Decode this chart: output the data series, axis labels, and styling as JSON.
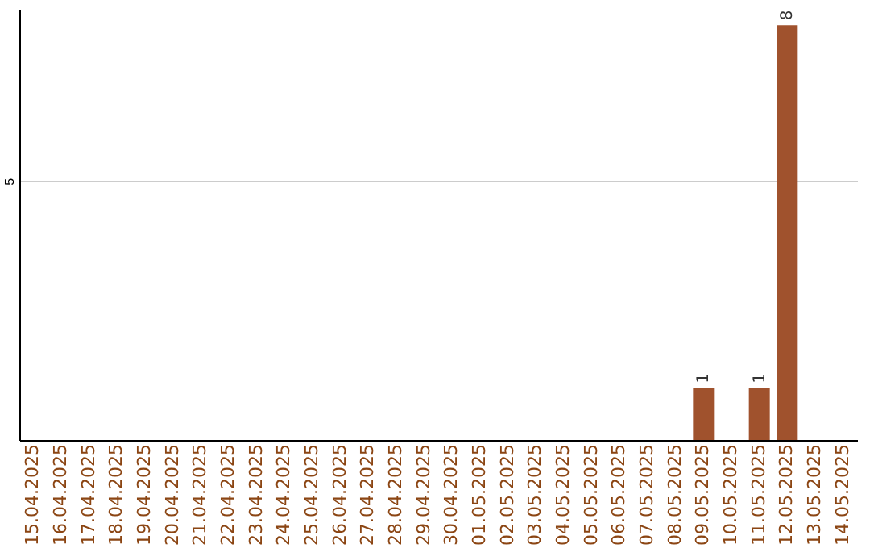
{
  "chart_data": {
    "type": "bar",
    "categories": [
      "15.04.2025",
      "16.04.2025",
      "17.04.2025",
      "18.04.2025",
      "19.04.2025",
      "20.04.2025",
      "21.04.2025",
      "22.04.2025",
      "23.04.2025",
      "24.04.2025",
      "25.04.2025",
      "26.04.2025",
      "27.04.2025",
      "28.04.2025",
      "29.04.2025",
      "30.04.2025",
      "01.05.2025",
      "02.05.2025",
      "03.05.2025",
      "04.05.2025",
      "05.05.2025",
      "06.05.2025",
      "07.05.2025",
      "08.05.2025",
      "09.05.2025",
      "10.05.2025",
      "11.05.2025",
      "12.05.2025",
      "13.05.2025",
      "14.05.2025"
    ],
    "values": [
      null,
      null,
      null,
      null,
      null,
      null,
      null,
      null,
      null,
      null,
      null,
      null,
      null,
      null,
      null,
      null,
      null,
      null,
      null,
      null,
      null,
      null,
      null,
      null,
      1,
      null,
      1,
      8,
      null,
      null
    ],
    "color": "#a0522d",
    "ylim": [
      0,
      8.3
    ],
    "yticks": [
      5
    ],
    "grid": "y",
    "data_labels": true
  }
}
